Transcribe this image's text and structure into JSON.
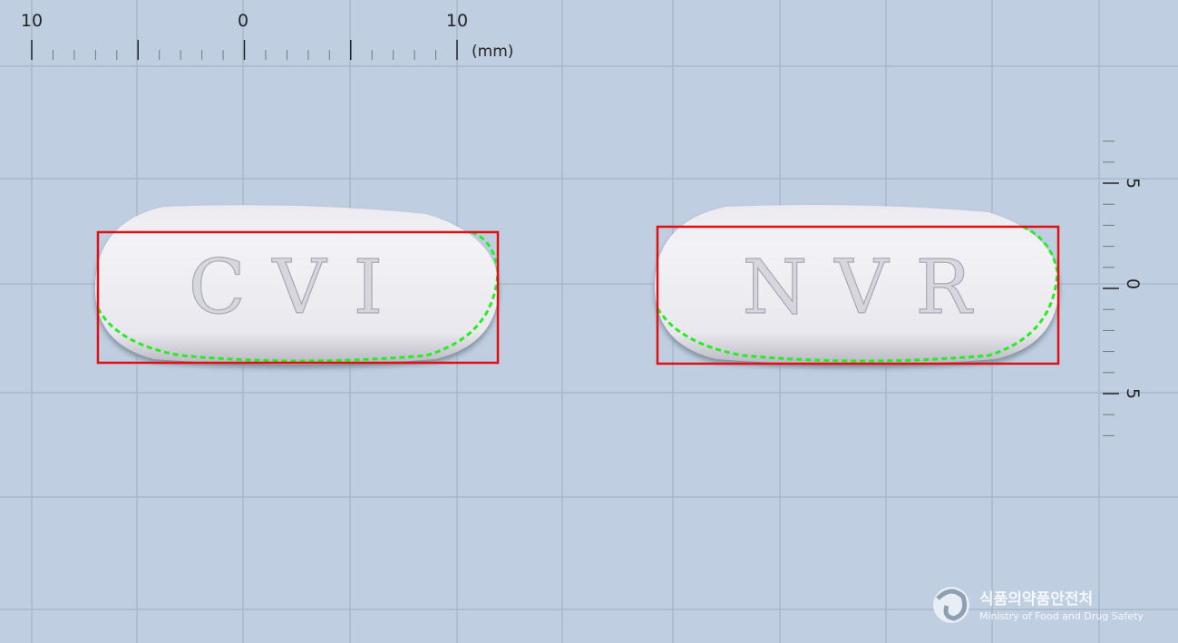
{
  "ruler_top": {
    "labels": [
      "10",
      "0",
      "10"
    ],
    "unit": "(mm)"
  },
  "ruler_right": {
    "labels": [
      "5",
      "0",
      "5"
    ]
  },
  "pills": [
    {
      "imprint": "CVI"
    },
    {
      "imprint": "NVR"
    }
  ],
  "logo": {
    "name": "식품의약품안전처",
    "english": "Ministry of Food and Drug Safety"
  }
}
